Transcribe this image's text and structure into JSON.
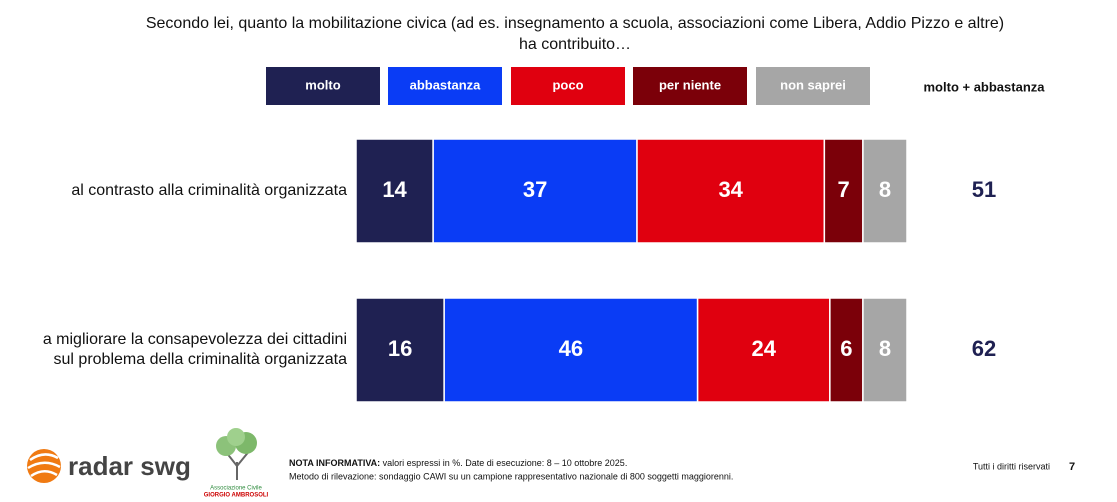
{
  "chart_data": {
    "type": "stacked-hbar",
    "title": [
      "Secondo lei, quanto la mobilitazione civica (ad es. insegnamento a scuola, associazioni come Libera, Addio Pizzo e altre)",
      "ha contribuito…"
    ],
    "categories": [
      [
        "al contrasto alla criminalità organizzata"
      ],
      [
        "a migliorare la consapevolezza dei cittadini",
        "sul problema della criminalità organizzata"
      ]
    ],
    "series": [
      {
        "name": "molto",
        "color": "#1f2152",
        "values": [
          14,
          16
        ]
      },
      {
        "name": "abbastanza",
        "color": "#0a3cf5",
        "values": [
          37,
          46
        ]
      },
      {
        "name": "poco",
        "color": "#e0000f",
        "values": [
          34,
          24
        ]
      },
      {
        "name": "per niente",
        "color": "#7b0009",
        "values": [
          7,
          6
        ]
      },
      {
        "name": "non saprei",
        "color": "#a6a6a6",
        "values": [
          8,
          8
        ]
      }
    ],
    "totals": {
      "label": "molto + abbastanza",
      "values": [
        51,
        62
      ]
    }
  },
  "footer": {
    "logo": "radar swg",
    "association": [
      "Associazione Civile",
      "GIORGIO AMBROSOLI"
    ],
    "note_label": "NOTA INFORMATIVA:",
    "note": "valori espressi in %. Date di esecuzione: 8 – 10 ottobre 2025.",
    "method": "Metodo di rilevazione: sondaggio CAWI su un campione rappresentativo nazionale di 800 soggetti maggiorenni.",
    "rights": "Tutti i diritti riservati",
    "page": "7"
  }
}
